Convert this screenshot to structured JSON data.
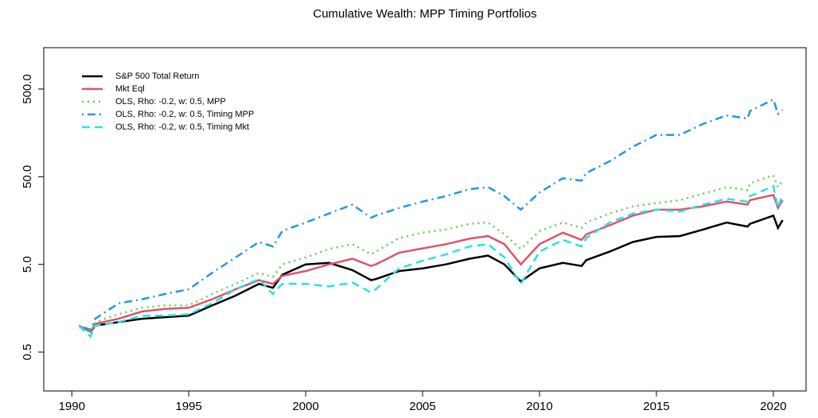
{
  "chart_data": {
    "type": "line",
    "title": "Cumulative Wealth: MPP Timing Portfolios",
    "x": [
      1990.3,
      1990.8,
      1991,
      1992,
      1993,
      1994,
      1995,
      1996,
      1997,
      1998,
      1998.6,
      1999,
      2000,
      2001,
      2002,
      2002.8,
      2003,
      2004,
      2005,
      2006,
      2007,
      2007.8,
      2008.5,
      2009.2,
      2010,
      2011,
      2011.8,
      2012,
      2013,
      2014,
      2015,
      2016,
      2017,
      2018,
      2018.9,
      2019,
      2020,
      2020.2,
      2020.4
    ],
    "series": [
      {
        "name": "S&P 500 Total Return",
        "color": "#000000",
        "dash": "solid",
        "values": [
          1.0,
          0.85,
          1.0,
          1.1,
          1.2,
          1.25,
          1.3,
          1.7,
          2.2,
          3.0,
          2.7,
          3.8,
          5.0,
          5.2,
          4.3,
          3.3,
          3.4,
          4.2,
          4.5,
          5.0,
          5.8,
          6.3,
          5.0,
          3.2,
          4.5,
          5.2,
          4.8,
          5.6,
          7.0,
          9.0,
          10.3,
          10.5,
          12.5,
          15,
          13.5,
          14.5,
          18,
          13,
          16
        ]
      },
      {
        "name": "Mkt Eql",
        "color": "#DF536B",
        "dash": "solid",
        "values": [
          1.0,
          0.85,
          1.05,
          1.2,
          1.45,
          1.55,
          1.6,
          2.0,
          2.6,
          3.3,
          3.0,
          3.7,
          4.2,
          5.0,
          5.8,
          4.8,
          5.0,
          6.8,
          7.6,
          8.5,
          9.8,
          10.5,
          8.5,
          5.0,
          8.5,
          11.5,
          9.5,
          11,
          14,
          18,
          21,
          21,
          23,
          26,
          24,
          27,
          31,
          22,
          27
        ]
      },
      {
        "name": "OLS, Rho: -0.2, w: 0.5, MPP",
        "color": "#61D04F",
        "dash": "dotted",
        "values": [
          1.0,
          0.85,
          1.1,
          1.35,
          1.6,
          1.7,
          1.7,
          2.3,
          3.0,
          4.0,
          3.6,
          5.0,
          6.0,
          7.5,
          8.5,
          6.5,
          7,
          10,
          11.5,
          12.5,
          14.5,
          15,
          11,
          7.5,
          12,
          15,
          13,
          15,
          19,
          23,
          25,
          27,
          32,
          38,
          35,
          42,
          52,
          38,
          45
        ]
      },
      {
        "name": "OLS, Rho: -0.2, w: 0.5, Timing MPP",
        "color": "#2297E6",
        "dash": "dotdash",
        "values": [
          1.0,
          0.9,
          1.2,
          1.8,
          2.0,
          2.3,
          2.6,
          4.0,
          6,
          9,
          8,
          12,
          15,
          19,
          24,
          17,
          18,
          22,
          26,
          30,
          36,
          38,
          30,
          21,
          33,
          48,
          45,
          55,
          75,
          110,
          150,
          150,
          200,
          250,
          230,
          280,
          380,
          260,
          290
        ]
      },
      {
        "name": "OLS, Rho: -0.2, w: 0.5, Timing Mkt",
        "color": "#28E2E5",
        "dash": "dashed",
        "values": [
          1.0,
          0.75,
          1.0,
          1.1,
          1.3,
          1.3,
          1.35,
          1.8,
          2.6,
          3.4,
          2.3,
          3.0,
          3.0,
          2.8,
          3.1,
          2.4,
          2.6,
          4.5,
          5.5,
          6.5,
          8.0,
          8.5,
          6.0,
          3.0,
          7.0,
          9.5,
          8.0,
          10,
          15,
          19,
          21,
          20,
          24,
          28,
          26,
          30,
          39,
          22,
          32
        ]
      }
    ],
    "xlim": [
      1988.8,
      2021.4
    ],
    "xticks": [
      1990,
      1995,
      2000,
      2005,
      2010,
      2015,
      2020
    ],
    "ylim": [
      0.18,
      1480
    ],
    "log_y": true,
    "yticks": [
      0.5,
      {
        "value": 5,
        "label": "5.0"
      },
      {
        "value": 50,
        "label": "50.0"
      },
      {
        "value": 500,
        "label": "500.0"
      }
    ],
    "legend": "top-left"
  }
}
